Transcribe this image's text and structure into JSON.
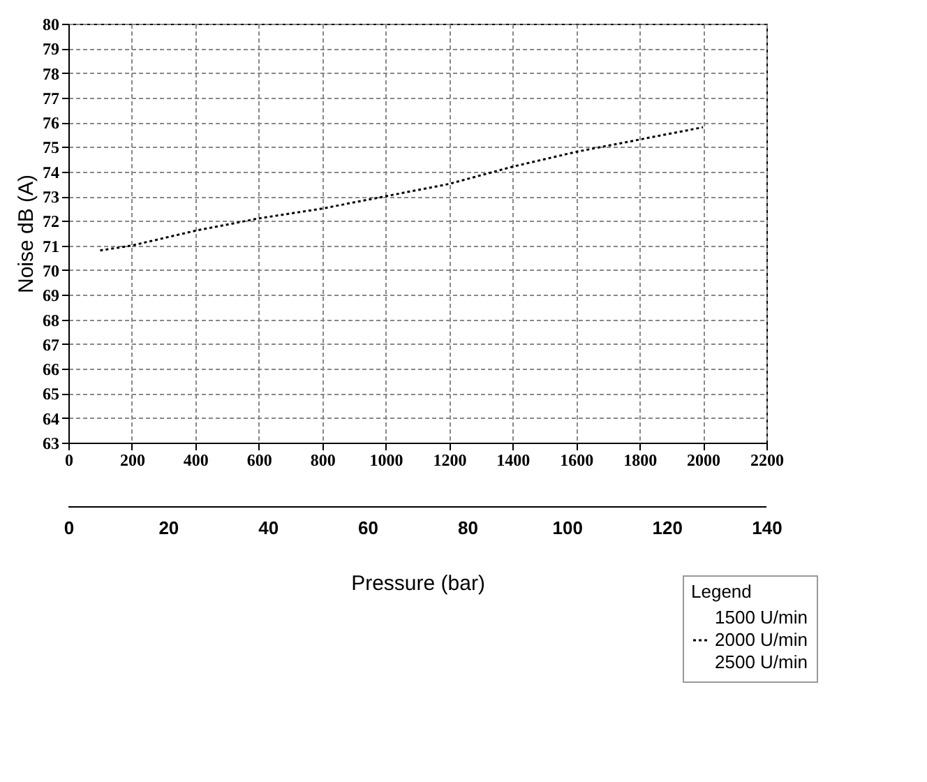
{
  "chart_data": {
    "type": "line",
    "xlabel": null,
    "ylabel": "Noise dB (A)",
    "x2label": "Pressure (bar)",
    "legend_title": "Legend",
    "x": [
      100,
      200,
      400,
      600,
      800,
      1000,
      1200,
      1400,
      1600,
      1800,
      2000
    ],
    "series": [
      {
        "name": "1500 U/min",
        "values": [
          null,
          null,
          null,
          null,
          null,
          null,
          null,
          null,
          null,
          null,
          null
        ]
      },
      {
        "name": "2000 U/min",
        "color": "#000000",
        "line_style": "dotted",
        "values": [
          70.8,
          71.0,
          71.6,
          72.1,
          72.5,
          73.0,
          73.5,
          74.2,
          74.8,
          75.3,
          75.8
        ]
      },
      {
        "name": "2500 U/min",
        "values": [
          null,
          null,
          null,
          null,
          null,
          null,
          null,
          null,
          null,
          null,
          null
        ]
      }
    ],
    "xlim": [
      0,
      2200
    ],
    "xticks": [
      0,
      200,
      400,
      600,
      800,
      1000,
      1200,
      1400,
      1600,
      1800,
      2000,
      2200
    ],
    "ylim": [
      63,
      80
    ],
    "yticks": [
      63,
      64,
      65,
      66,
      67,
      68,
      69,
      70,
      71,
      72,
      73,
      74,
      75,
      76,
      77,
      78,
      79,
      80
    ],
    "x2lim": [
      0,
      140
    ],
    "x2ticks": [
      0,
      20,
      40,
      60,
      80,
      100,
      120,
      140
    ],
    "grid": true,
    "legend": "bottom right",
    "marker": "none"
  }
}
